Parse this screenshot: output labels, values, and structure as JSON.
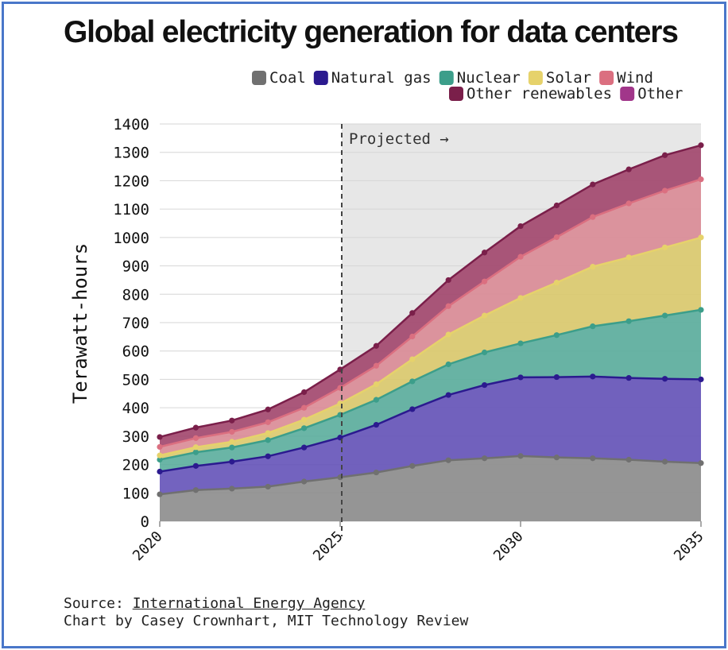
{
  "chart_data": {
    "type": "area",
    "stacked": true,
    "title": "Global electricity generation for data centers",
    "ylabel": "Terawatt-hours",
    "xlabel": "",
    "ylim": [
      0,
      1400
    ],
    "xlim": [
      2020,
      2035
    ],
    "yticks": [
      0,
      100,
      200,
      300,
      400,
      500,
      600,
      700,
      800,
      900,
      1000,
      1100,
      1200,
      1300,
      1400
    ],
    "xticks": [
      2020,
      2025,
      2030,
      2035
    ],
    "grid": true,
    "legend_position": "top-right",
    "annotation": {
      "x": 2025,
      "label": "Projected →"
    },
    "x": [
      2020,
      2021,
      2022,
      2023,
      2024,
      2025,
      2026,
      2027,
      2028,
      2029,
      2030,
      2031,
      2032,
      2033,
      2034,
      2035
    ],
    "series": [
      {
        "name": "Coal",
        "fill": "#8c8c8c",
        "line": "#707070",
        "values": [
          95,
          110,
          115,
          122,
          140,
          155,
          172,
          195,
          215,
          222,
          230,
          225,
          222,
          217,
          210,
          205
        ]
      },
      {
        "name": "Natural gas",
        "fill": "#6452b8",
        "line": "#2b1a8f",
        "values": [
          80,
          85,
          95,
          107,
          120,
          140,
          168,
          200,
          230,
          258,
          277,
          283,
          288,
          288,
          292,
          295
        ]
      },
      {
        "name": "Nuclear",
        "fill": "#5aad9c",
        "line": "#3c9e8a",
        "values": [
          42,
          48,
          50,
          57,
          68,
          80,
          88,
          98,
          108,
          115,
          120,
          148,
          177,
          200,
          223,
          245
        ]
      },
      {
        "name": "Solar",
        "fill": "#dac96c",
        "line": "#e6d26b",
        "values": [
          15,
          18,
          20,
          25,
          30,
          40,
          55,
          78,
          105,
          130,
          160,
          185,
          210,
          225,
          240,
          255
        ]
      },
      {
        "name": "Wind",
        "fill": "#d98995",
        "line": "#db6f80",
        "values": [
          30,
          32,
          35,
          38,
          42,
          55,
          65,
          80,
          100,
          120,
          145,
          160,
          175,
          190,
          200,
          205
        ]
      },
      {
        "name": "Other renewables",
        "fill": "#a1456b",
        "line": "#7a1f4a",
        "values": [
          35,
          37,
          40,
          45,
          55,
          65,
          70,
          83,
          92,
          102,
          108,
          112,
          115,
          120,
          125,
          120
        ]
      },
      {
        "name": "Other",
        "fill": "#c050a8",
        "line": "#a1368a",
        "values": [
          0,
          0,
          0,
          0,
          0,
          0,
          0,
          0,
          0,
          0,
          0,
          0,
          0,
          0,
          0,
          0
        ]
      }
    ],
    "legend_labels": [
      "Coal",
      "Natural gas",
      "Nuclear",
      "Solar",
      "Wind",
      "Other renewables",
      "Other"
    ]
  },
  "footer": {
    "source_prefix": "Source: ",
    "source_link": "International Energy Agency",
    "credit": "Chart by Casey Crownhart, MIT Technology Review"
  }
}
